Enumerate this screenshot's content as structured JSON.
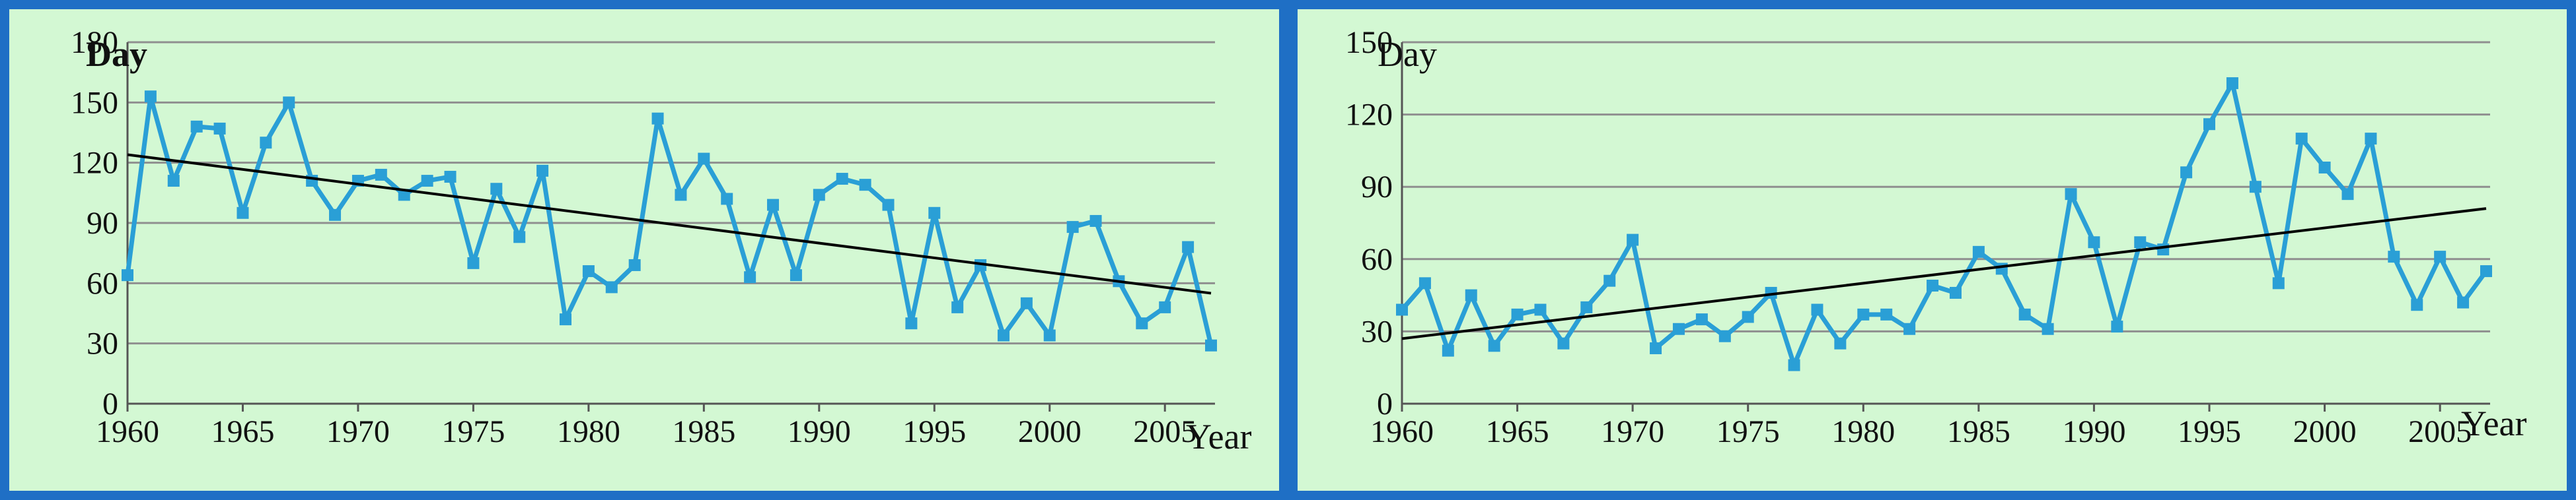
{
  "colors": {
    "border": "#1f6fc5",
    "background": "#d3f8d3",
    "grid": "#8f8f8f",
    "series": "#2a9fd6",
    "trend": "#000000"
  },
  "chart_data": [
    {
      "type": "line",
      "title": "",
      "ylabel": "Day",
      "xlabel": "Year",
      "ylim": [
        0,
        180
      ],
      "xlim": [
        1960,
        2007
      ],
      "y_ticks": [
        "0",
        "30",
        "60",
        "90",
        "120",
        "150",
        "180"
      ],
      "x_ticks": [
        "1960",
        "1965",
        "1970",
        "1975",
        "1980",
        "1985",
        "1990",
        "1995",
        "2000",
        "2005"
      ],
      "grid": true,
      "series": [
        {
          "name": "Day",
          "x": [
            1960,
            1961,
            1962,
            1963,
            1964,
            1965,
            1966,
            1967,
            1968,
            1969,
            1970,
            1971,
            1972,
            1973,
            1974,
            1975,
            1976,
            1977,
            1978,
            1979,
            1980,
            1981,
            1982,
            1983,
            1984,
            1985,
            1986,
            1987,
            1988,
            1989,
            1990,
            1991,
            1992,
            1993,
            1994,
            1995,
            1996,
            1997,
            1998,
            1999,
            2000,
            2001,
            2002,
            2003,
            2004,
            2005,
            2006,
            2007
          ],
          "values": [
            64,
            153,
            111,
            138,
            137,
            95,
            130,
            150,
            111,
            94,
            111,
            114,
            104,
            111,
            113,
            70,
            107,
            83,
            116,
            42,
            66,
            58,
            69,
            142,
            104,
            122,
            102,
            63,
            99,
            64,
            104,
            112,
            109,
            99,
            40,
            95,
            48,
            69,
            34,
            50,
            34,
            88,
            91,
            61,
            40,
            48,
            78,
            29
          ]
        },
        {
          "name": "Trend",
          "x": [
            1960,
            2007
          ],
          "values": [
            124,
            55
          ]
        }
      ]
    },
    {
      "type": "line",
      "title": "",
      "ylabel": "Day",
      "xlabel": "Year",
      "ylim": [
        0,
        150
      ],
      "xlim": [
        1960,
        2007
      ],
      "y_ticks": [
        "0",
        "30",
        "60",
        "90",
        "120",
        "150"
      ],
      "x_ticks": [
        "1960",
        "1965",
        "1970",
        "1975",
        "1980",
        "1985",
        "1990",
        "1995",
        "2000",
        "2005"
      ],
      "grid": true,
      "series": [
        {
          "name": "Day",
          "x": [
            1960,
            1961,
            1962,
            1963,
            1964,
            1965,
            1966,
            1967,
            1968,
            1969,
            1970,
            1971,
            1972,
            1973,
            1974,
            1975,
            1976,
            1977,
            1978,
            1979,
            1980,
            1981,
            1982,
            1983,
            1984,
            1985,
            1986,
            1987,
            1988,
            1989,
            1990,
            1991,
            1992,
            1993,
            1994,
            1995,
            1996,
            1997,
            1998,
            1999,
            2000,
            2001,
            2002,
            2003,
            2004,
            2005,
            2006,
            2007
          ],
          "values": [
            39,
            50,
            22,
            45,
            24,
            37,
            39,
            25,
            40,
            51,
            68,
            23,
            31,
            35,
            28,
            36,
            46,
            16,
            39,
            25,
            37,
            37,
            31,
            49,
            46,
            63,
            56,
            37,
            31,
            87,
            67,
            32,
            67,
            64,
            96,
            116,
            133,
            90,
            50,
            110,
            98,
            87,
            110,
            61,
            41,
            61,
            42,
            55
          ]
        },
        {
          "name": "Trend",
          "x": [
            1960,
            2007
          ],
          "values": [
            27,
            81
          ]
        }
      ]
    }
  ]
}
